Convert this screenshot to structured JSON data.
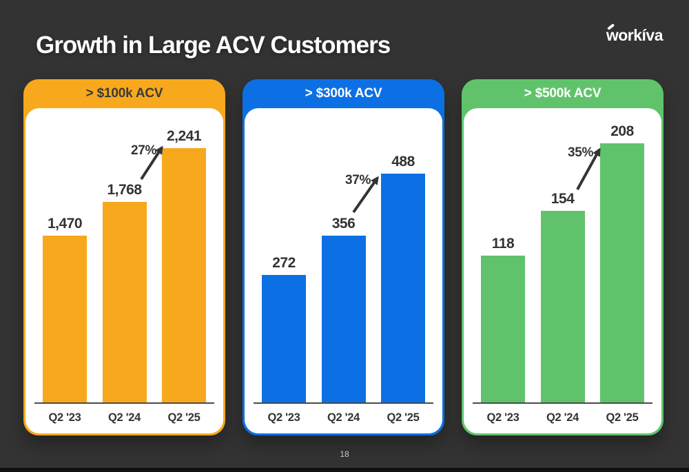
{
  "slide": {
    "title": "Growth in Large ACV Customers",
    "logo_text": "workíva",
    "page_number": "18"
  },
  "chart_data": [
    {
      "type": "bar",
      "title": "> $100k ACV",
      "header_bg": "#F8A81C",
      "header_text_color": "#3A3A3A",
      "bar_color": "#F8A81C",
      "categories": [
        "Q2 '23",
        "Q2 '24",
        "Q2 '25"
      ],
      "values": [
        1470,
        1768,
        2241
      ],
      "value_labels": [
        "1,470",
        "1,768",
        "2,241"
      ],
      "growth_annotation": "27%",
      "xlabel": "",
      "ylabel": "",
      "ylim": [
        0,
        2600
      ],
      "grid": false,
      "legend": "none"
    },
    {
      "type": "bar",
      "title": "> $300k ACV",
      "header_bg": "#0C70E4",
      "header_text_color": "#FFFFFF",
      "bar_color": "#0C70E4",
      "categories": [
        "Q2 '23",
        "Q2 '24",
        "Q2 '25"
      ],
      "values": [
        272,
        356,
        488
      ],
      "value_labels": [
        "272",
        "356",
        "488"
      ],
      "growth_annotation": "37%",
      "xlabel": "",
      "ylabel": "",
      "ylim": [
        0,
        630
      ],
      "grid": false,
      "legend": "none"
    },
    {
      "type": "bar",
      "title": "> $500k ACV",
      "header_bg": "#60C36B",
      "header_text_color": "#FFFFFF",
      "bar_color": "#60C36B",
      "categories": [
        "Q2 '23",
        "Q2 '24",
        "Q2 '25"
      ],
      "values": [
        118,
        154,
        208
      ],
      "value_labels": [
        "118",
        "154",
        "208"
      ],
      "growth_annotation": "35%",
      "xlabel": "",
      "ylabel": "",
      "ylim": [
        0,
        236
      ],
      "grid": false,
      "legend": "none"
    }
  ]
}
